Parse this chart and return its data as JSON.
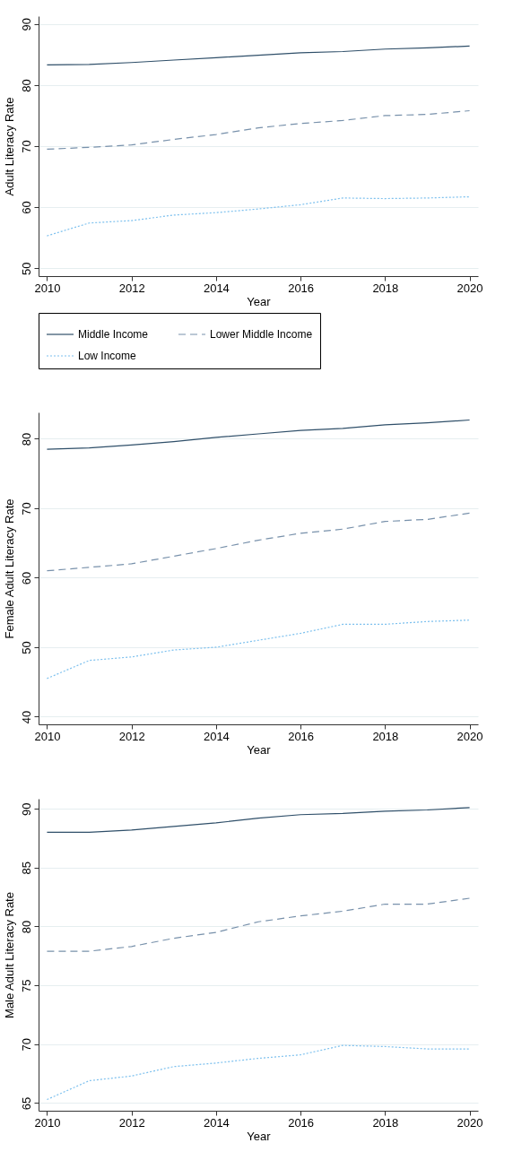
{
  "chart_data": [
    {
      "type": "line",
      "xlabel": "Year",
      "ylabel": "Adult Literacy Rate",
      "x": [
        2010,
        2011,
        2012,
        2013,
        2014,
        2015,
        2016,
        2017,
        2018,
        2019,
        2020
      ],
      "xlim": [
        2009.8,
        2020.2
      ],
      "xticks": [
        2010,
        2012,
        2014,
        2016,
        2018,
        2020
      ],
      "ylim": [
        48.7,
        91.3
      ],
      "yticks": [
        50,
        60,
        70,
        80,
        90
      ],
      "grid": "y",
      "legend": "bottom",
      "series": [
        {
          "name": "Middle Income",
          "color": "#2f4f69",
          "line_style": "solid",
          "values": [
            83.3,
            83.4,
            83.7,
            84.1,
            84.5,
            84.9,
            85.3,
            85.5,
            85.9,
            86.1,
            86.4
          ]
        },
        {
          "name": "Lower Middle Income",
          "color": "#7891ab",
          "line_style": "dashed",
          "values": [
            69.5,
            69.8,
            70.2,
            71.1,
            71.9,
            73.0,
            73.7,
            74.2,
            75.0,
            75.2,
            75.8
          ]
        },
        {
          "name": "Low Income",
          "color": "#7cc0ee",
          "line_style": "dotted",
          "values": [
            55.3,
            57.4,
            57.8,
            58.7,
            59.1,
            59.7,
            60.4,
            61.5,
            61.4,
            61.5,
            61.7
          ]
        }
      ]
    },
    {
      "type": "line",
      "xlabel": "Year",
      "ylabel": "Female Adult Literacy Rate",
      "x": [
        2010,
        2011,
        2012,
        2013,
        2014,
        2015,
        2016,
        2017,
        2018,
        2019,
        2020
      ],
      "xlim": [
        2009.8,
        2020.2
      ],
      "xticks": [
        2010,
        2012,
        2014,
        2016,
        2018,
        2020
      ],
      "ylim": [
        38.9,
        83.8
      ],
      "yticks": [
        40,
        50,
        60,
        70,
        80
      ],
      "grid": "y",
      "series": [
        {
          "color": "#2f4f69",
          "line_style": "solid",
          "values": [
            78.5,
            78.7,
            79.1,
            79.6,
            80.2,
            80.7,
            81.2,
            81.5,
            82.0,
            82.3,
            82.7
          ]
        },
        {
          "color": "#7891ab",
          "line_style": "dashed",
          "values": [
            61.0,
            61.5,
            62.0,
            63.1,
            64.2,
            65.4,
            66.4,
            67.0,
            68.1,
            68.4,
            69.3
          ]
        },
        {
          "color": "#7cc0ee",
          "line_style": "dotted",
          "values": [
            45.5,
            48.1,
            48.6,
            49.6,
            50.0,
            51.0,
            52.0,
            53.3,
            53.3,
            53.7,
            53.9
          ]
        }
      ]
    },
    {
      "type": "line",
      "xlabel": "Year",
      "ylabel": "Male Adult Literacy Rate",
      "x": [
        2010,
        2011,
        2012,
        2013,
        2014,
        2015,
        2016,
        2017,
        2018,
        2019,
        2020
      ],
      "xlim": [
        2009.8,
        2020.2
      ],
      "xticks": [
        2010,
        2012,
        2014,
        2016,
        2018,
        2020
      ],
      "ylim": [
        64.35,
        90.85
      ],
      "yticks": [
        65,
        70,
        75,
        80,
        85,
        90
      ],
      "grid": "y",
      "series": [
        {
          "color": "#2f4f69",
          "line_style": "solid",
          "values": [
            88.0,
            88.0,
            88.2,
            88.5,
            88.8,
            89.2,
            89.5,
            89.6,
            89.8,
            89.9,
            90.1
          ]
        },
        {
          "color": "#7891ab",
          "line_style": "dashed",
          "values": [
            77.9,
            77.9,
            78.3,
            79.0,
            79.5,
            80.4,
            80.9,
            81.3,
            81.9,
            81.9,
            82.4
          ]
        },
        {
          "color": "#7cc0ee",
          "line_style": "dotted",
          "values": [
            65.3,
            66.9,
            67.3,
            68.1,
            68.4,
            68.8,
            69.1,
            69.9,
            69.8,
            69.6,
            69.6
          ]
        }
      ]
    }
  ]
}
